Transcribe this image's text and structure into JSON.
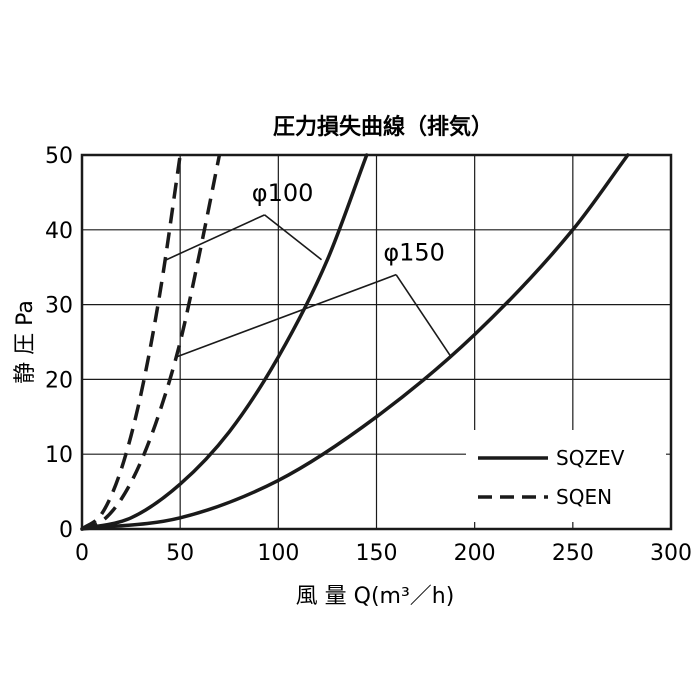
{
  "chart_data": {
    "type": "line",
    "title": "圧力損失曲線（排気）",
    "xlabel": "風 量 Q(m³／h)",
    "ylabel": "静 圧 Pa",
    "xlim": [
      0,
      300
    ],
    "ylim": [
      0,
      50
    ],
    "x_ticks": [
      "0",
      "50",
      "100",
      "150",
      "200",
      "250",
      "300"
    ],
    "y_ticks": [
      "0",
      "10",
      "20",
      "30",
      "40",
      "50"
    ],
    "grid": true,
    "legend_position": "bottom-right",
    "legend": [
      {
        "label": "SQZEV",
        "style": "solid"
      },
      {
        "label": "SQEN",
        "style": "dashed"
      }
    ],
    "series": [
      {
        "model": "SQZEV",
        "size": "φ100",
        "style": "solid",
        "x": [
          0,
          25,
          50,
          75,
          100,
          125,
          145
        ],
        "y": [
          0,
          1.5,
          6,
          13,
          23,
          36,
          50
        ]
      },
      {
        "model": "SQZEV",
        "size": "φ150",
        "style": "solid",
        "x": [
          0,
          50,
          100,
          150,
          200,
          250,
          278
        ],
        "y": [
          0,
          1.5,
          6.5,
          15,
          26,
          40,
          50
        ]
      },
      {
        "model": "SQEN",
        "size": "φ100",
        "style": "dashed",
        "x": [
          0,
          10,
          20,
          30,
          40,
          50
        ],
        "y": [
          0,
          2,
          8,
          18,
          32,
          50
        ]
      },
      {
        "model": "SQEN",
        "size": "φ150",
        "style": "dashed",
        "x": [
          0,
          10,
          20,
          30,
          40,
          50,
          60,
          70
        ],
        "y": [
          0,
          1,
          4,
          9,
          16,
          25,
          37,
          50
        ]
      }
    ],
    "annotations": [
      {
        "text": "φ100",
        "label_at": [
          93,
          42
        ],
        "arrows_to": [
          [
            43,
            36
          ],
          [
            122,
            36
          ]
        ]
      },
      {
        "text": "φ150",
        "label_at": [
          160,
          34
        ],
        "arrows_to": [
          [
            48,
            23
          ],
          [
            188,
            23
          ]
        ]
      }
    ]
  }
}
